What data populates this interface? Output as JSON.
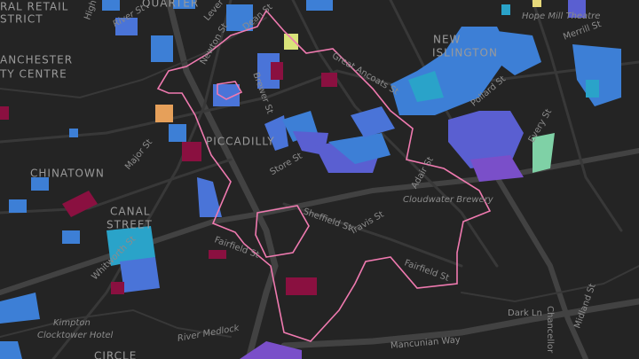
{
  "labels": [
    "RAL RETAIL",
    "STRICT",
    "QUARTER",
    "High St",
    "River St",
    "ANCHESTER",
    "TY CENTRE",
    "Lever St",
    "Dean St",
    "Newton St",
    "Brewer St",
    "Great Ancoats St",
    "NEW",
    "ISLINGTON",
    "Hope Mill Theatre",
    "Merrill St",
    "Pollard St",
    "Every St",
    "PICCADILLY",
    "Store St",
    "Major St",
    "CHINATOWN",
    "Sheffield St",
    "Travis St",
    "Adair St",
    "Cloudwater Brewery",
    "Fairfield St",
    "Fairfield St",
    "CANAL",
    "STREET",
    "Whitworth St",
    "Kimpton",
    "Clocktower Hotel",
    "River Medlock",
    "Dark Ln",
    "Chancellor",
    "Midland St",
    "Mancunian Way",
    "CIRCLE"
  ]
}
